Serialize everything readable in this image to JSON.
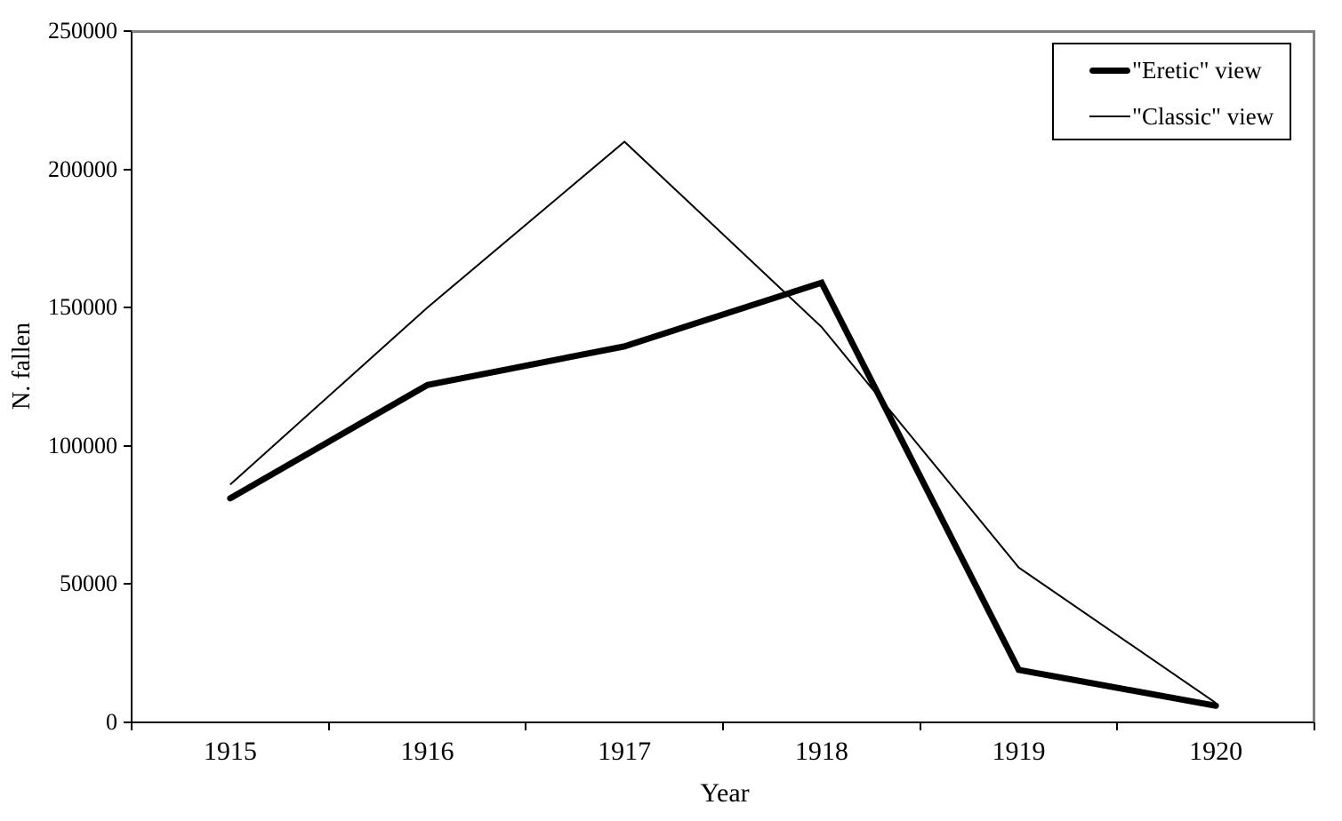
{
  "chart_data": {
    "type": "line",
    "title": "",
    "xlabel": "Year",
    "ylabel": "N. fallen",
    "categories": [
      "1915",
      "1916",
      "1917",
      "1918",
      "1919",
      "1920"
    ],
    "series": [
      {
        "name": "\"Eretic\" view",
        "style": "thick",
        "values": [
          81000,
          122000,
          136000,
          159000,
          19000,
          6000
        ]
      },
      {
        "name": "\"Classic\" view",
        "style": "thin",
        "values": [
          86000,
          150000,
          210000,
          143000,
          56000,
          7000
        ]
      }
    ],
    "ylim": [
      0,
      250000
    ],
    "y_ticks": [
      250000,
      200000,
      150000,
      100000,
      50000,
      0
    ],
    "grid": false,
    "legend_position": "top-right",
    "colors": {
      "line": "#000000",
      "frame": "#808080",
      "axis": "#000000",
      "background": "#ffffff",
      "text": "#000000"
    }
  }
}
